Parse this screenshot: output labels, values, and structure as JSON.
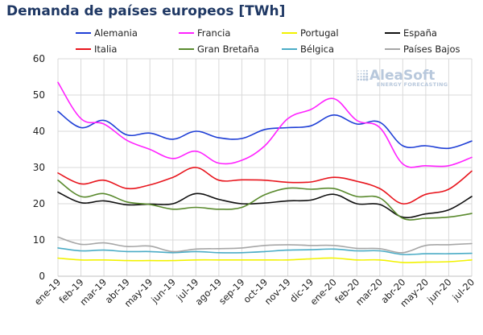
{
  "chart_data": {
    "type": "line",
    "title": "Demanda de países europeos [TWh]",
    "xlabel": "",
    "ylabel": "",
    "ylim": [
      0,
      60
    ],
    "yticks": [
      0,
      10,
      20,
      30,
      40,
      50,
      60
    ],
    "grid": true,
    "legend_position": "top",
    "categories": [
      "ene-19",
      "feb-19",
      "mar-19",
      "abr-19",
      "may-19",
      "jun-19",
      "jul-19",
      "ago-19",
      "sep-19",
      "oct-19",
      "nov-19",
      "dic-19",
      "ene-20",
      "feb-20",
      "mar-20",
      "abr-20",
      "may-20",
      "jun-20",
      "jul-20"
    ],
    "series": [
      {
        "name": "Alemania",
        "color": "#1f3fd6",
        "values": [
          45.5,
          41,
          43,
          39,
          39.5,
          37.8,
          40,
          38.2,
          38,
          40.5,
          41,
          41.5,
          44.5,
          42,
          42.5,
          36,
          36,
          35.3,
          37.3
        ]
      },
      {
        "name": "Francia",
        "color": "#ff22ff",
        "values": [
          53.5,
          43.5,
          42,
          37.5,
          35,
          32.5,
          34.5,
          31.2,
          32,
          36,
          43.5,
          46,
          49,
          43,
          41,
          31,
          30.5,
          30.5,
          32.8
        ]
      },
      {
        "name": "Portugal",
        "color": "#f2f200",
        "values": [
          5,
          4.5,
          4.5,
          4.3,
          4.3,
          4.3,
          4.5,
          4.5,
          4.5,
          4.5,
          4.5,
          4.8,
          5,
          4.5,
          4.5,
          3.8,
          3.9,
          4,
          4.5
        ]
      },
      {
        "name": "España",
        "color": "#111111",
        "values": [
          23.2,
          20.3,
          20.8,
          19.7,
          19.9,
          20,
          22.8,
          21.2,
          20,
          20.2,
          20.8,
          21,
          22.6,
          20,
          19.8,
          16.3,
          17.2,
          18.3,
          22
        ]
      },
      {
        "name": "Italia",
        "color": "#e8141c",
        "values": [
          28.5,
          25.5,
          26.5,
          24.2,
          25.2,
          27.3,
          30,
          26.5,
          26.6,
          26.5,
          25.9,
          26,
          27.3,
          26.2,
          24.2,
          20,
          22.6,
          24,
          29
        ]
      },
      {
        "name": "Gran Bretaña",
        "color": "#5a8a2e",
        "values": [
          26.5,
          22,
          22.8,
          20.5,
          19.8,
          18.5,
          19,
          18.5,
          19,
          22.5,
          24.3,
          24,
          24.2,
          22,
          21.6,
          16,
          16,
          16.3,
          17.3
        ]
      },
      {
        "name": "Bélgica",
        "color": "#4bacc6",
        "values": [
          7.8,
          7,
          7.2,
          6.8,
          6.8,
          6.5,
          6.8,
          6.5,
          6.5,
          6.8,
          7.2,
          7.3,
          7.5,
          7,
          7,
          6,
          6.2,
          6.2,
          6.3
        ]
      },
      {
        "name": "Países Bajos",
        "color": "#a6a6a6",
        "values": [
          10.8,
          8.8,
          9.2,
          8.2,
          8.3,
          6.8,
          7.5,
          7.6,
          7.8,
          8.5,
          8.7,
          8.5,
          8.5,
          7.7,
          7.6,
          6.5,
          8.5,
          8.7,
          9
        ]
      }
    ]
  },
  "watermark": {
    "brand": "AleaSoft",
    "tagline": "ENERGY FORECASTING",
    "icon": "dot-grid-logo-icon"
  }
}
